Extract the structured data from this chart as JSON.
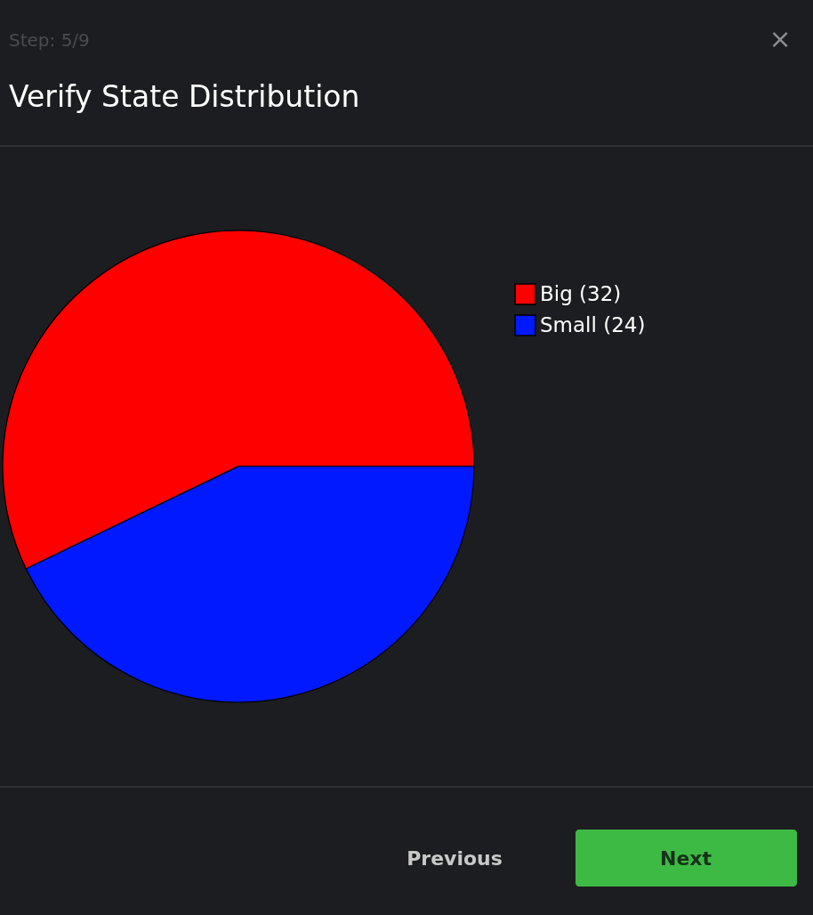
{
  "chart_data": {
    "type": "pie",
    "title": "Verify State Distribution",
    "categories": [
      "Big (32)",
      "Small (24)"
    ],
    "values": [
      32,
      24
    ],
    "colors": [
      "#ff0000",
      "#0019ff"
    ],
    "legend": "right",
    "annotations": [
      "Step: 5/9",
      "Previous",
      "Next",
      "×"
    ]
  }
}
